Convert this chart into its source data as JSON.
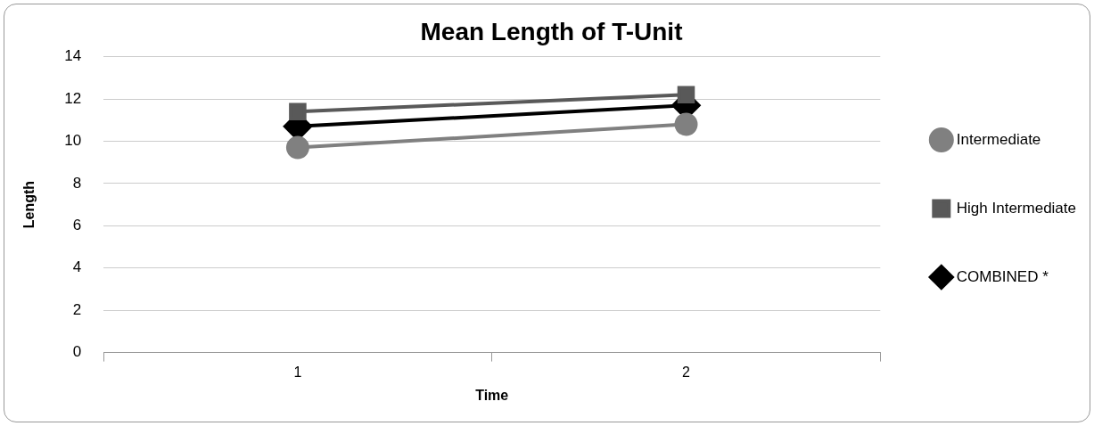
{
  "chart_data": {
    "type": "line",
    "title": "Mean Length of T-Unit",
    "xlabel": "Time",
    "ylabel": "Length",
    "categories": [
      "1",
      "2"
    ],
    "series": [
      {
        "name": "Intermediate",
        "color": "#808080",
        "values": [
          9.7,
          10.8
        ],
        "marker": "circle"
      },
      {
        "name": "High Intermediate",
        "color": "#595959",
        "values": [
          11.4,
          12.2
        ],
        "marker": "square"
      },
      {
        "name": "COMBINED *",
        "color": "#000000",
        "values": [
          10.7,
          11.7
        ],
        "marker": "diamond"
      }
    ],
    "ylim": [
      0,
      14
    ],
    "yticks": [
      0,
      2,
      4,
      6,
      8,
      10,
      12,
      14
    ],
    "grid": "y",
    "legend": "right"
  }
}
